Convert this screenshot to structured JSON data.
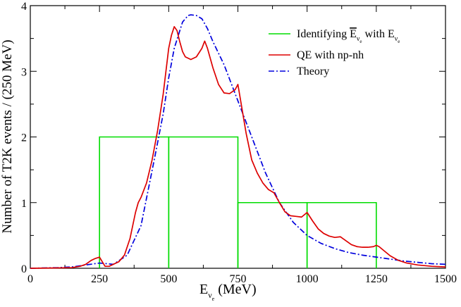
{
  "chart_data": {
    "type": "line",
    "title": "",
    "xlabel": "E",
    "xlabel_sub": "ν",
    "xlabel_subsub": "e",
    "xlabel_unit": "(MeV)",
    "ylabel": "Number of T2K events / (250 MeV)",
    "xlim": [
      0,
      1500
    ],
    "ylim": [
      0,
      4
    ],
    "xticks": [
      0,
      250,
      500,
      750,
      1000,
      1250,
      1500
    ],
    "yticks": [
      0,
      1,
      2,
      3,
      4
    ],
    "xtick_labels": [
      "0",
      "250",
      "500",
      "750",
      "1000",
      "1250",
      "1500"
    ],
    "ytick_labels": [
      "0",
      "1",
      "2",
      "3",
      "4"
    ],
    "legend_position": "top-right",
    "series": [
      {
        "name": "Identifying Ē_νe with E_νe",
        "legend_label_main": "Identifying ",
        "legend_label_bar": "E",
        "legend_label_sub": "ν",
        "legend_label_subsub": "e",
        "legend_label_with": " with ",
        "legend_label_e2": "E",
        "color": "#00dd00",
        "style": "solid",
        "kind": "histogram",
        "bins": [
          {
            "x0": 250,
            "x1": 500,
            "value": 2
          },
          {
            "x0": 500,
            "x1": 750,
            "value": 2
          },
          {
            "x0": 750,
            "x1": 1000,
            "value": 1
          },
          {
            "x0": 1000,
            "x1": 1250,
            "value": 1
          }
        ]
      },
      {
        "name": "QE with np-nh",
        "color": "#dd0000",
        "style": "solid",
        "kind": "curve",
        "x": [
          0,
          100,
          150,
          180,
          200,
          220,
          235,
          250,
          260,
          270,
          285,
          300,
          320,
          340,
          360,
          380,
          390,
          400,
          420,
          440,
          460,
          480,
          500,
          510,
          520,
          530,
          540,
          550,
          560,
          580,
          600,
          620,
          630,
          640,
          660,
          680,
          700,
          720,
          740,
          750,
          760,
          780,
          800,
          820,
          840,
          860,
          880,
          900,
          920,
          940,
          960,
          980,
          1000,
          1020,
          1040,
          1060,
          1080,
          1100,
          1120,
          1140,
          1160,
          1180,
          1200,
          1220,
          1240,
          1250,
          1260,
          1280,
          1300,
          1330,
          1360,
          1400,
          1450,
          1500
        ],
        "y": [
          0,
          0.005,
          0.01,
          0.03,
          0.06,
          0.12,
          0.15,
          0.17,
          0.1,
          0.03,
          0.03,
          0.06,
          0.1,
          0.2,
          0.45,
          0.85,
          1.0,
          1.08,
          1.3,
          1.65,
          2.1,
          2.65,
          3.35,
          3.55,
          3.68,
          3.62,
          3.45,
          3.3,
          3.22,
          3.18,
          3.22,
          3.35,
          3.46,
          3.35,
          3.05,
          2.8,
          2.67,
          2.66,
          2.72,
          2.8,
          2.55,
          2.05,
          1.65,
          1.45,
          1.3,
          1.2,
          1.15,
          1.0,
          0.86,
          0.8,
          0.79,
          0.78,
          0.85,
          0.72,
          0.6,
          0.53,
          0.49,
          0.47,
          0.48,
          0.42,
          0.36,
          0.33,
          0.32,
          0.32,
          0.33,
          0.35,
          0.33,
          0.26,
          0.19,
          0.12,
          0.08,
          0.05,
          0.03,
          0.02
        ]
      },
      {
        "name": "Theory",
        "color": "#0000dd",
        "style": "dashdot",
        "kind": "curve",
        "x": [
          0,
          100,
          150,
          200,
          250,
          300,
          350,
          400,
          450,
          480,
          500,
          520,
          550,
          570,
          580,
          600,
          620,
          640,
          660,
          700,
          750,
          800,
          850,
          900,
          950,
          1000,
          1050,
          1100,
          1150,
          1200,
          1250,
          1300,
          1350,
          1400,
          1450,
          1500
        ],
        "y": [
          0,
          0.01,
          0.02,
          0.05,
          0.08,
          0.06,
          0.2,
          0.65,
          1.7,
          2.35,
          2.9,
          3.35,
          3.75,
          3.85,
          3.86,
          3.85,
          3.8,
          3.65,
          3.45,
          3.1,
          2.55,
          2.0,
          1.45,
          1.0,
          0.7,
          0.5,
          0.38,
          0.3,
          0.24,
          0.2,
          0.17,
          0.14,
          0.11,
          0.09,
          0.07,
          0.06
        ]
      }
    ]
  }
}
